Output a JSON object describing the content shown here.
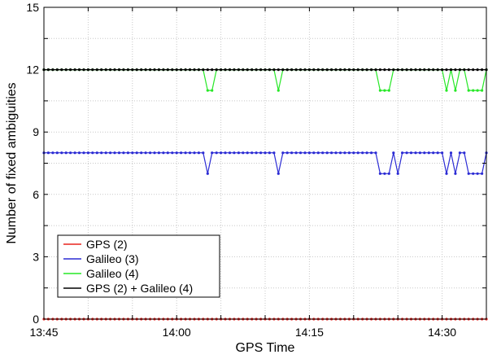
{
  "chart_data": {
    "type": "line",
    "title": "",
    "xlabel": "GPS Time",
    "ylabel": "Number of fixed ambiguities",
    "x_unit": "time (HH:MM)",
    "xlim": [
      "13:45:00",
      "14:35:00"
    ],
    "ylim": [
      0,
      15
    ],
    "xticks": [
      "13:45",
      "14:00",
      "14:15",
      "14:30"
    ],
    "yticks": [
      "0",
      "3",
      "6",
      "9",
      "12",
      "15"
    ],
    "grid": true,
    "legend_position": "bottom-left",
    "sample_interval_seconds": 30,
    "series": [
      {
        "name": "GPS (2)",
        "color": "#e8231f",
        "default_value": 0,
        "changes": []
      },
      {
        "name": "Galileo (3)",
        "color": "#2b2bd4",
        "default_value": 8,
        "changes": [
          {
            "time": "14:03:30",
            "value": 7
          },
          {
            "time": "14:11:30",
            "value": 7
          },
          {
            "time": "14:23:00",
            "value": 7
          },
          {
            "time": "14:23:30",
            "value": 7
          },
          {
            "time": "14:24:00",
            "value": 7
          },
          {
            "time": "14:25:00",
            "value": 7
          },
          {
            "time": "14:30:30",
            "value": 7
          },
          {
            "time": "14:31:30",
            "value": 7
          },
          {
            "time": "14:33:00",
            "value": 7
          },
          {
            "time": "14:33:30",
            "value": 7
          },
          {
            "time": "14:34:00",
            "value": 7
          },
          {
            "time": "14:34:30",
            "value": 7
          }
        ]
      },
      {
        "name": "Galileo (4)",
        "color": "#27e827",
        "default_value": 12,
        "changes": [
          {
            "time": "14:03:30",
            "value": 11
          },
          {
            "time": "14:04:00",
            "value": 11
          },
          {
            "time": "14:11:30",
            "value": 11
          },
          {
            "time": "14:23:00",
            "value": 11
          },
          {
            "time": "14:23:30",
            "value": 11
          },
          {
            "time": "14:24:00",
            "value": 11
          },
          {
            "time": "14:30:30",
            "value": 11
          },
          {
            "time": "14:31:30",
            "value": 11
          },
          {
            "time": "14:33:00",
            "value": 11
          },
          {
            "time": "14:33:30",
            "value": 11
          },
          {
            "time": "14:34:00",
            "value": 11
          },
          {
            "time": "14:34:30",
            "value": 11
          }
        ]
      },
      {
        "name": "GPS (2) + Galileo (4)",
        "color": "#000000",
        "default_value": 12,
        "changes": []
      }
    ]
  }
}
